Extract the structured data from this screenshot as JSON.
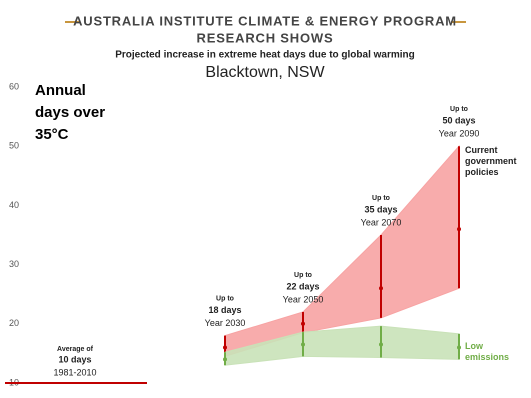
{
  "chart_data": {
    "type": "range",
    "title": "AUSTRALIA INSTITUTE CLIMATE & ENERGY PROGRAM",
    "title_line2": "RESEARCH SHOWS",
    "subtitle": "Projected increase in extreme heat days due to global warming",
    "location": "Blacktown, NSW",
    "y_label": "Annual days over 35°C",
    "ylim": [
      10,
      60
    ],
    "yticks": [
      10,
      20,
      30,
      40,
      50,
      60
    ],
    "grid": false,
    "categories": [
      "Year 2030",
      "Year 2050",
      "Year 2070",
      "Year 2090"
    ],
    "annotation_prefix": "Up to",
    "baseline": {
      "label": "Average of",
      "value": 10,
      "value_label": "10 days",
      "period": "1981-2010",
      "color": "#c00000"
    },
    "series": [
      {
        "name": "Current government policies",
        "color": "#c00000",
        "fill": "#f7a3a3",
        "low": [
          14.5,
          18.5,
          21,
          26
        ],
        "mid": [
          16,
          20,
          26,
          36
        ],
        "high": [
          18,
          22,
          35,
          50
        ],
        "value_labels": [
          "18 days",
          "22 days",
          "35 days",
          "50 days"
        ]
      },
      {
        "name": "Low emissions",
        "color": "#70ad47",
        "fill": "#c9e2b8",
        "low": [
          13,
          14.5,
          14.3,
          14
        ],
        "mid": [
          14,
          16.5,
          16.5,
          16
        ],
        "high": [
          15.2,
          18.6,
          19.6,
          18.3
        ]
      }
    ]
  }
}
